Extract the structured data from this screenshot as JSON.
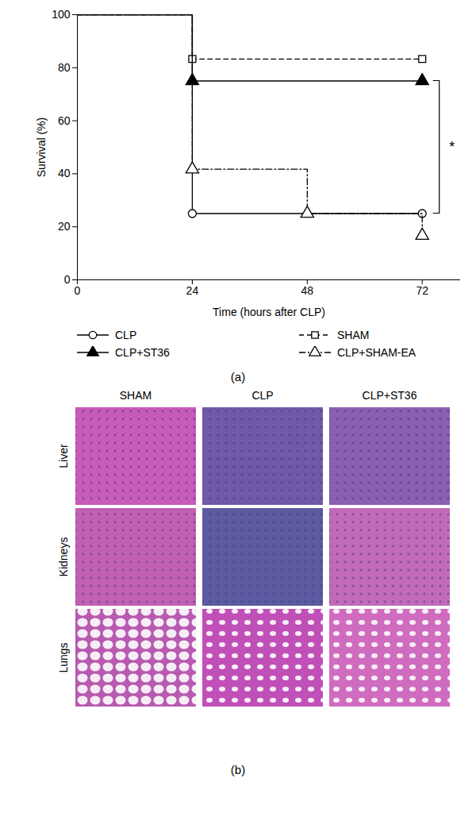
{
  "chart_data": {
    "type": "line",
    "x_label": "Time (hours after CLP)",
    "y_label": "Survival (%)",
    "x": [
      0,
      24,
      48,
      72
    ],
    "xlim": [
      0,
      80
    ],
    "xticks": [
      0,
      24,
      48,
      72
    ],
    "ylim": [
      0,
      100
    ],
    "yticks": [
      0,
      20,
      40,
      60,
      80,
      100
    ],
    "legend": "bottom",
    "series": [
      {
        "name": "CLP",
        "color": "#000000",
        "marker": "circle-open",
        "line_style": "solid",
        "values": [
          100,
          25,
          25,
          25
        ]
      },
      {
        "name": "SHAM",
        "color": "#000000",
        "marker": "square-open",
        "line_style": "dashed",
        "values": [
          100,
          83.3,
          83.3,
          83.3
        ]
      },
      {
        "name": "CLP+ST36",
        "color": "#000000",
        "marker": "triangle",
        "line_style": "solid",
        "values": [
          100,
          75,
          75,
          75
        ]
      },
      {
        "name": "CLP+SHAM-EA",
        "color": "#000000",
        "marker": "triangle-open",
        "line_style": "dashdot",
        "values": [
          100,
          41.7,
          25,
          16.7
        ]
      }
    ],
    "annotations": [
      {
        "text": "*",
        "between": [
          "CLP+ST36",
          "CLP"
        ]
      }
    ],
    "panel_label": "(a)"
  },
  "figure": {
    "panel_label": "(b)",
    "columns": [
      "SHAM",
      "CLP",
      "CLP+ST36"
    ],
    "rows": [
      "Liver",
      "Kidneys",
      "Lungs"
    ]
  }
}
